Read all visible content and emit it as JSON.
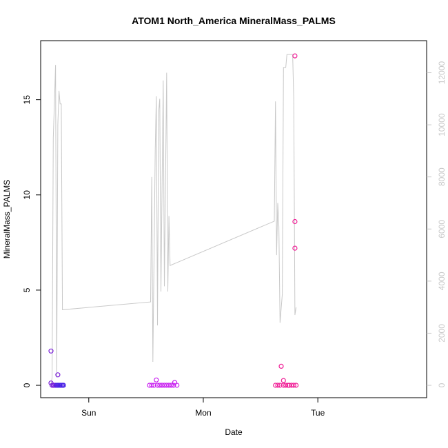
{
  "chart_data": {
    "type": "scatter",
    "title": "ATOM1 North_America MineralMass_PALMS",
    "xlabel": "Date",
    "ylabel": "MineralMass_PALMS",
    "x_ticks": [
      {
        "label": "Sun",
        "x": 1.0
      },
      {
        "label": "Mon",
        "x": 2.0
      },
      {
        "label": "Tue",
        "x": 3.0
      }
    ],
    "xlim": [
      0.58,
      3.95
    ],
    "ylim": [
      -0.65,
      18.1
    ],
    "y_ticks": [
      0,
      5,
      10,
      15
    ],
    "y2lim": [
      -475,
      13230
    ],
    "y2_ticks": [
      0,
      2000,
      4000,
      6000,
      8000,
      10000,
      12000
    ],
    "grid": false,
    "legend": "none",
    "colors": {
      "line": "#c8c8c8",
      "purple": "#7a1fd9",
      "blue": "#4a22e6",
      "magenta": "#c81ef0",
      "pink": "#f01e96"
    },
    "points": [
      {
        "x": 0.67,
        "y": 1.8,
        "c": "purple"
      },
      {
        "x": 0.67,
        "y": 0.12,
        "c": "purple"
      },
      {
        "x": 0.68,
        "y": 0.0,
        "c": "purple"
      },
      {
        "x": 0.69,
        "y": 0.0,
        "c": "purple"
      },
      {
        "x": 0.7,
        "y": 0.0,
        "c": "purple"
      },
      {
        "x": 0.71,
        "y": 0.0,
        "c": "purple"
      },
      {
        "x": 0.72,
        "y": 0.0,
        "c": "blue"
      },
      {
        "x": 0.73,
        "y": 0.0,
        "c": "blue"
      },
      {
        "x": 0.73,
        "y": 0.55,
        "c": "purple"
      },
      {
        "x": 0.74,
        "y": 0.0,
        "c": "blue"
      },
      {
        "x": 0.75,
        "y": 0.0,
        "c": "blue"
      },
      {
        "x": 0.76,
        "y": 0.0,
        "c": "blue"
      },
      {
        "x": 0.77,
        "y": 0.0,
        "c": "blue"
      },
      {
        "x": 0.78,
        "y": 0.0,
        "c": "blue"
      },
      {
        "x": 1.53,
        "y": 0.0,
        "c": "magenta"
      },
      {
        "x": 1.55,
        "y": 0.0,
        "c": "magenta"
      },
      {
        "x": 1.57,
        "y": 0.0,
        "c": "magenta"
      },
      {
        "x": 1.59,
        "y": 0.28,
        "c": "magenta"
      },
      {
        "x": 1.6,
        "y": 0.0,
        "c": "magenta"
      },
      {
        "x": 1.62,
        "y": 0.0,
        "c": "magenta"
      },
      {
        "x": 1.64,
        "y": 0.0,
        "c": "magenta"
      },
      {
        "x": 1.66,
        "y": 0.0,
        "c": "magenta"
      },
      {
        "x": 1.68,
        "y": 0.0,
        "c": "magenta"
      },
      {
        "x": 1.7,
        "y": 0.0,
        "c": "magenta"
      },
      {
        "x": 1.72,
        "y": 0.0,
        "c": "magenta"
      },
      {
        "x": 1.74,
        "y": 0.0,
        "c": "magenta"
      },
      {
        "x": 1.75,
        "y": 0.15,
        "c": "magenta"
      },
      {
        "x": 1.77,
        "y": 0.0,
        "c": "magenta"
      },
      {
        "x": 2.63,
        "y": 0.0,
        "c": "pink"
      },
      {
        "x": 2.65,
        "y": 0.0,
        "c": "pink"
      },
      {
        "x": 2.67,
        "y": 0.0,
        "c": "pink"
      },
      {
        "x": 2.68,
        "y": 1.0,
        "c": "pink"
      },
      {
        "x": 2.7,
        "y": 0.0,
        "c": "pink"
      },
      {
        "x": 2.7,
        "y": 0.25,
        "c": "pink"
      },
      {
        "x": 2.72,
        "y": 0.0,
        "c": "pink"
      },
      {
        "x": 2.74,
        "y": 0.0,
        "c": "pink"
      },
      {
        "x": 2.75,
        "y": 0.0,
        "c": "pink"
      },
      {
        "x": 2.77,
        "y": 0.0,
        "c": "pink"
      },
      {
        "x": 2.79,
        "y": 0.0,
        "c": "pink"
      },
      {
        "x": 2.8,
        "y": 17.3,
        "c": "pink"
      },
      {
        "x": 2.8,
        "y": 8.6,
        "c": "pink"
      },
      {
        "x": 2.8,
        "y": 7.2,
        "c": "pink"
      },
      {
        "x": 2.81,
        "y": 0.0,
        "c": "pink"
      }
    ],
    "line_series": [
      [
        0.67,
        0
      ],
      [
        0.68,
        300
      ],
      [
        0.69,
        9500
      ],
      [
        0.7,
        10800
      ],
      [
        0.71,
        12300
      ],
      [
        0.72,
        300
      ],
      [
        0.73,
        10000
      ],
      [
        0.74,
        11300
      ],
      [
        0.75,
        10800
      ],
      [
        0.76,
        10800
      ],
      [
        0.77,
        2900
      ],
      [
        1.54,
        3200
      ],
      [
        1.55,
        8000
      ],
      [
        1.56,
        900
      ],
      [
        1.58,
        9000
      ],
      [
        1.59,
        11100
      ],
      [
        1.6,
        2300
      ],
      [
        1.61,
        10500
      ],
      [
        1.62,
        11000
      ],
      [
        1.63,
        3600
      ],
      [
        1.65,
        11700
      ],
      [
        1.66,
        3800
      ],
      [
        1.68,
        12000
      ],
      [
        1.69,
        3600
      ],
      [
        1.7,
        6500
      ],
      [
        1.71,
        4600
      ],
      [
        2.62,
        6300
      ],
      [
        2.63,
        10900
      ],
      [
        2.64,
        5000
      ],
      [
        2.65,
        7000
      ],
      [
        2.66,
        6100
      ],
      [
        2.67,
        2400
      ],
      [
        2.69,
        3500
      ],
      [
        2.7,
        12200
      ],
      [
        2.71,
        12200
      ],
      [
        2.72,
        12200
      ],
      [
        2.73,
        12700
      ],
      [
        2.78,
        12700
      ],
      [
        2.79,
        11000
      ],
      [
        2.8,
        2700
      ],
      [
        2.81,
        3000
      ]
    ]
  }
}
